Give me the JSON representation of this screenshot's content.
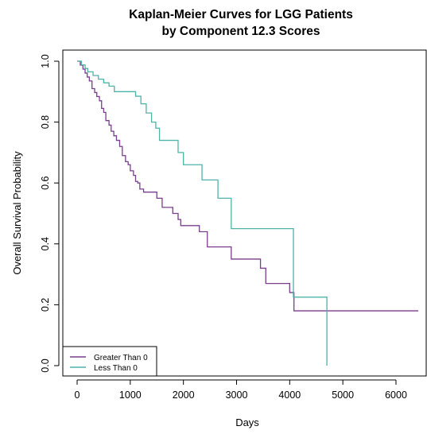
{
  "chart_data": {
    "type": "line",
    "title": [
      "Kaplan-Meier Curves for LGG Patients",
      "by Component 12.3 Scores"
    ],
    "xlabel": "Days",
    "ylabel": "Overall Survival Probability",
    "xlim": [
      -150,
      6600
    ],
    "ylim": [
      0.0,
      1.0
    ],
    "xticks": [
      0,
      1000,
      2000,
      3000,
      4000,
      5000,
      6000
    ],
    "xtick_labels": [
      "0",
      "1000",
      "2000",
      "3000",
      "4000",
      "5000",
      "6000"
    ],
    "yticks": [
      0.0,
      0.2,
      0.4,
      0.6,
      0.8,
      1.0
    ],
    "ytick_labels": [
      "0.0",
      "0.2",
      "0.4",
      "0.6",
      "0.8",
      "1.0"
    ],
    "legend_position": "bottom-left",
    "grid": false,
    "series": [
      {
        "name": "Greater Than 0",
        "color": "#7a3e8e",
        "x": [
          0,
          60,
          110,
          150,
          190,
          230,
          280,
          330,
          370,
          420,
          460,
          500,
          540,
          600,
          640,
          690,
          740,
          800,
          850,
          910,
          960,
          1000,
          1060,
          1100,
          1140,
          1180,
          1250,
          1500,
          1600,
          1800,
          1900,
          1950,
          2300,
          2450,
          2900,
          3450,
          3550,
          4000,
          4080,
          4150,
          6420
        ],
        "y": [
          1.0,
          0.987,
          0.974,
          0.961,
          0.948,
          0.935,
          0.91,
          0.897,
          0.884,
          0.87,
          0.845,
          0.832,
          0.805,
          0.79,
          0.77,
          0.755,
          0.74,
          0.72,
          0.69,
          0.67,
          0.66,
          0.64,
          0.625,
          0.605,
          0.6,
          0.58,
          0.57,
          0.55,
          0.52,
          0.5,
          0.48,
          0.46,
          0.44,
          0.39,
          0.35,
          0.32,
          0.27,
          0.24,
          0.18,
          0.18,
          0.18
        ]
      },
      {
        "name": "Less Than 0",
        "color": "#4fb3a9",
        "x": [
          0,
          80,
          150,
          200,
          300,
          400,
          500,
          600,
          700,
          1100,
          1200,
          1300,
          1400,
          1480,
          1550,
          1900,
          2000,
          2350,
          2650,
          2900,
          4070,
          4700,
          4700
        ],
        "y": [
          1.0,
          0.988,
          0.976,
          0.965,
          0.953,
          0.941,
          0.929,
          0.918,
          0.9,
          0.885,
          0.86,
          0.83,
          0.8,
          0.78,
          0.74,
          0.7,
          0.66,
          0.61,
          0.55,
          0.45,
          0.225,
          0.225,
          0.0
        ]
      }
    ]
  }
}
